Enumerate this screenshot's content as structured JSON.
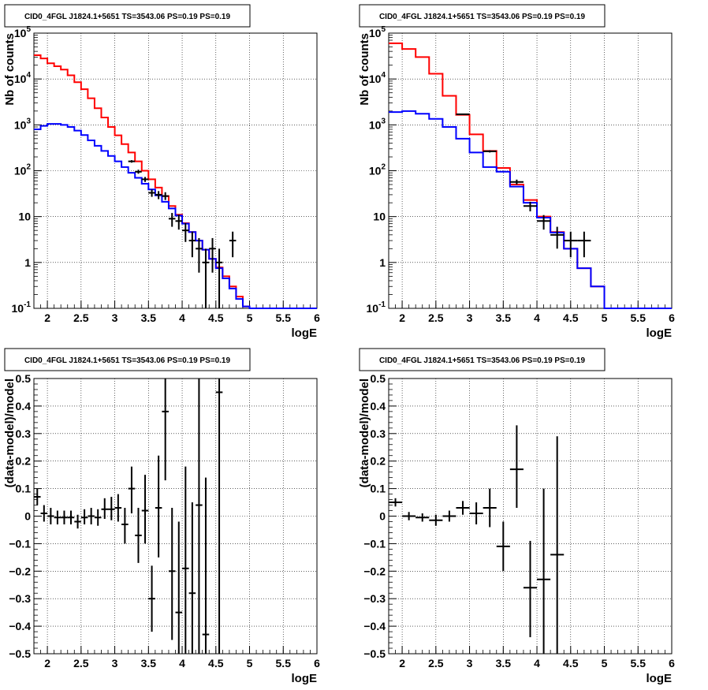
{
  "chart_data": [
    {
      "id": "tl",
      "type": "line",
      "title": "CID0_4FGL J1824.1+5651 TS=3543.06 PS=0.19 PS=0.19",
      "xlabel": "logE",
      "ylabel": "Nb of counts",
      "xlim": [
        1.8,
        6.0
      ],
      "ylim": [
        0.1,
        100000
      ],
      "ylog": true,
      "grid": true,
      "x_ticks": [
        "2",
        "2.5",
        "3",
        "3.5",
        "4",
        "4.5",
        "5",
        "5.5",
        "6"
      ],
      "y_ticks": [
        "10^-1",
        "1",
        "10",
        "10^2",
        "10^3",
        "10^4",
        "10^5"
      ],
      "series": [
        {
          "color": "#ff0000",
          "bin_edges": [
            1.8,
            1.9,
            2.0,
            2.1,
            2.2,
            2.3,
            2.4,
            2.5,
            2.6,
            2.7,
            2.8,
            2.9,
            3.0,
            3.1,
            3.2,
            3.3,
            3.4,
            3.5,
            3.6,
            3.7,
            3.8,
            3.9,
            4.0,
            4.1,
            4.2,
            4.3,
            4.4,
            4.5,
            4.6,
            4.7,
            4.8,
            4.9,
            5.0,
            6.0
          ],
          "values": [
            33000,
            28000,
            22000,
            19000,
            16000,
            12000,
            8500,
            6000,
            3800,
            2300,
            1450,
            900,
            590,
            380,
            250,
            160,
            100,
            65,
            43,
            28,
            17,
            11,
            7.2,
            4.6,
            3.0,
            1.9,
            1.2,
            0.78,
            0.5,
            0.3,
            0.18,
            0.11,
            0.1
          ]
        },
        {
          "color": "#0000ff",
          "bin_edges": [
            1.8,
            1.9,
            2.0,
            2.1,
            2.2,
            2.3,
            2.4,
            2.5,
            2.6,
            2.7,
            2.8,
            2.9,
            3.0,
            3.1,
            3.2,
            3.3,
            3.4,
            3.5,
            3.6,
            3.7,
            3.8,
            3.9,
            4.0,
            4.1,
            4.2,
            4.3,
            4.4,
            4.5,
            4.6,
            4.7,
            4.8,
            4.9,
            5.0,
            6.0
          ],
          "values": [
            800,
            950,
            1050,
            1050,
            1000,
            900,
            750,
            600,
            460,
            350,
            270,
            210,
            160,
            120,
            90,
            70,
            52,
            39,
            29,
            21,
            15,
            10.5,
            7,
            4.6,
            3.0,
            1.9,
            1.2,
            0.75,
            0.45,
            0.27,
            0.16,
            0.11,
            0.1
          ]
        }
      ],
      "points": [
        {
          "x": 3.25,
          "y": 160,
          "xerr": 0.05,
          "ylo": 150,
          "yhi": 170
        },
        {
          "x": 3.35,
          "y": 95,
          "xerr": 0.05,
          "ylo": 86,
          "yhi": 105
        },
        {
          "x": 3.45,
          "y": 65,
          "xerr": 0.05,
          "ylo": 57,
          "yhi": 73
        },
        {
          "x": 3.55,
          "y": 33,
          "xerr": 0.05,
          "ylo": 27,
          "yhi": 39
        },
        {
          "x": 3.65,
          "y": 30,
          "xerr": 0.05,
          "ylo": 24,
          "yhi": 36
        },
        {
          "x": 3.75,
          "y": 28,
          "xerr": 0.05,
          "ylo": 23,
          "yhi": 34
        },
        {
          "x": 3.85,
          "y": 9,
          "xerr": 0.05,
          "ylo": 6,
          "yhi": 12
        },
        {
          "x": 3.95,
          "y": 8,
          "xerr": 0.05,
          "ylo": 5.2,
          "yhi": 11
        },
        {
          "x": 4.05,
          "y": 5,
          "xerr": 0.05,
          "ylo": 2.8,
          "yhi": 7.2
        },
        {
          "x": 4.15,
          "y": 3,
          "xerr": 0.05,
          "ylo": 1.3,
          "yhi": 4.7
        },
        {
          "x": 4.25,
          "y": 2,
          "xerr": 0.05,
          "ylo": 0.6,
          "yhi": 3.4
        },
        {
          "x": 4.35,
          "y": 1,
          "xerr": 0.05,
          "ylo": 0.1,
          "yhi": 2.0
        },
        {
          "x": 4.45,
          "y": 2,
          "xerr": 0.05,
          "ylo": 0.6,
          "yhi": 3.4
        },
        {
          "x": 4.55,
          "y": 1,
          "xerr": 0.05,
          "ylo": 0.1,
          "yhi": 2.0
        },
        {
          "x": 4.75,
          "y": 3,
          "xerr": 0.05,
          "ylo": 1.3,
          "yhi": 4.7
        }
      ]
    },
    {
      "id": "tr",
      "type": "line",
      "title": "CID0_4FGL J1824.1+5651 TS=3543.06 PS=0.19 PS=0.19",
      "xlabel": "logE",
      "ylabel": "Nb of counts",
      "xlim": [
        1.8,
        6.0
      ],
      "ylim": [
        0.1,
        100000
      ],
      "ylog": true,
      "grid": true,
      "x_ticks": [
        "2",
        "2.5",
        "3",
        "3.5",
        "4",
        "4.5",
        "5",
        "5.5",
        "6"
      ],
      "y_ticks": [
        "10^-1",
        "1",
        "10",
        "10^2",
        "10^3",
        "10^4",
        "10^5"
      ],
      "series": [
        {
          "color": "#ff0000",
          "bin_edges": [
            1.8,
            2.0,
            2.2,
            2.4,
            2.6,
            2.8,
            3.0,
            3.2,
            3.4,
            3.6,
            3.8,
            4.0,
            4.2,
            4.4,
            4.6,
            4.8,
            5.0,
            6.0
          ],
          "values": [
            60000,
            45000,
            30000,
            13000,
            4300,
            1650,
            620,
            270,
            115,
            50,
            23,
            10,
            4.6,
            2.0,
            0.75,
            0.3,
            0.1
          ]
        },
        {
          "color": "#0000ff",
          "bin_edges": [
            1.8,
            2.0,
            2.2,
            2.4,
            2.6,
            2.8,
            3.0,
            3.2,
            3.4,
            3.6,
            3.8,
            4.0,
            4.2,
            4.4,
            4.6,
            4.8,
            5.0,
            6.0
          ],
          "values": [
            1900,
            2000,
            1750,
            1350,
            900,
            500,
            250,
            120,
            95,
            45,
            20,
            9.5,
            4.5,
            2.0,
            0.75,
            0.3,
            0.1
          ]
        }
      ],
      "points": [
        {
          "x": 2.9,
          "y": 1700,
          "xerr": 0.1,
          "ylo": 1660,
          "yhi": 1740
        },
        {
          "x": 3.3,
          "y": 265,
          "xerr": 0.1,
          "ylo": 250,
          "yhi": 280
        },
        {
          "x": 3.7,
          "y": 57,
          "xerr": 0.1,
          "ylo": 50,
          "yhi": 64
        },
        {
          "x": 3.9,
          "y": 17,
          "xerr": 0.1,
          "ylo": 13,
          "yhi": 21
        },
        {
          "x": 4.1,
          "y": 8,
          "xerr": 0.1,
          "ylo": 5.2,
          "yhi": 10.8
        },
        {
          "x": 4.3,
          "y": 4,
          "xerr": 0.1,
          "ylo": 2.0,
          "yhi": 6.0
        },
        {
          "x": 4.5,
          "y": 3,
          "xerr": 0.1,
          "ylo": 1.3,
          "yhi": 4.7
        },
        {
          "x": 4.7,
          "y": 3,
          "xerr": 0.1,
          "ylo": 1.3,
          "yhi": 4.7
        }
      ]
    },
    {
      "id": "bl",
      "type": "scatter",
      "title": "CID0_4FGL J1824.1+5651 TS=3543.06 PS=0.19 PS=0.19",
      "xlabel": "logE",
      "ylabel": "(data-model)/model",
      "xlim": [
        1.8,
        6.0
      ],
      "ylim": [
        -0.5,
        0.5
      ],
      "ylog": false,
      "grid": true,
      "x_ticks": [
        "2",
        "2.5",
        "3",
        "3.5",
        "4",
        "4.5",
        "5",
        "5.5",
        "6"
      ],
      "y_ticks": [
        "-0.5",
        "-0.4",
        "-0.3",
        "-0.2",
        "-0.1",
        "0",
        "0.1",
        "0.2",
        "0.3",
        "0.4",
        "0.5"
      ],
      "points": [
        {
          "x": 1.85,
          "y": 0.07,
          "xerr": 0.05,
          "ylo": 0.04,
          "yhi": 0.1
        },
        {
          "x": 1.95,
          "y": 0.01,
          "xerr": 0.05,
          "ylo": -0.02,
          "yhi": 0.04
        },
        {
          "x": 2.05,
          "y": 0.0,
          "xerr": 0.05,
          "ylo": -0.03,
          "yhi": 0.03
        },
        {
          "x": 2.15,
          "y": -0.005,
          "xerr": 0.05,
          "ylo": -0.03,
          "yhi": 0.02
        },
        {
          "x": 2.25,
          "y": -0.005,
          "xerr": 0.05,
          "ylo": -0.03,
          "yhi": 0.02
        },
        {
          "x": 2.35,
          "y": -0.005,
          "xerr": 0.05,
          "ylo": -0.03,
          "yhi": 0.02
        },
        {
          "x": 2.45,
          "y": -0.02,
          "xerr": 0.05,
          "ylo": -0.045,
          "yhi": 0.005
        },
        {
          "x": 2.55,
          "y": -0.005,
          "xerr": 0.05,
          "ylo": -0.03,
          "yhi": 0.025
        },
        {
          "x": 2.65,
          "y": 0.0,
          "xerr": 0.05,
          "ylo": -0.03,
          "yhi": 0.03
        },
        {
          "x": 2.75,
          "y": -0.005,
          "xerr": 0.05,
          "ylo": -0.035,
          "yhi": 0.025
        },
        {
          "x": 2.85,
          "y": 0.025,
          "xerr": 0.05,
          "ylo": -0.01,
          "yhi": 0.065
        },
        {
          "x": 2.95,
          "y": 0.025,
          "xerr": 0.05,
          "ylo": -0.015,
          "yhi": 0.07
        },
        {
          "x": 3.05,
          "y": 0.03,
          "xerr": 0.05,
          "ylo": -0.02,
          "yhi": 0.08
        },
        {
          "x": 3.15,
          "y": -0.03,
          "xerr": 0.05,
          "ylo": -0.1,
          "yhi": 0.03
        },
        {
          "x": 3.25,
          "y": 0.1,
          "xerr": 0.05,
          "ylo": 0.01,
          "yhi": 0.18
        },
        {
          "x": 3.35,
          "y": -0.07,
          "xerr": 0.05,
          "ylo": -0.17,
          "yhi": 0.03
        },
        {
          "x": 3.45,
          "y": 0.02,
          "xerr": 0.05,
          "ylo": -0.1,
          "yhi": 0.15
        },
        {
          "x": 3.55,
          "y": -0.3,
          "xerr": 0.05,
          "ylo": -0.42,
          "yhi": -0.18
        },
        {
          "x": 3.65,
          "y": 0.03,
          "xerr": 0.05,
          "ylo": -0.15,
          "yhi": 0.22
        },
        {
          "x": 3.75,
          "y": 0.38,
          "xerr": 0.05,
          "ylo": 0.13,
          "yhi": 0.52
        },
        {
          "x": 3.85,
          "y": -0.2,
          "xerr": 0.05,
          "ylo": -0.45,
          "yhi": 0.03
        },
        {
          "x": 3.95,
          "y": -0.35,
          "xerr": 0.05,
          "ylo": -0.52,
          "yhi": -0.02
        },
        {
          "x": 4.05,
          "y": -0.19,
          "xerr": 0.05,
          "ylo": -0.52,
          "yhi": 0.18
        },
        {
          "x": 4.15,
          "y": -0.28,
          "xerr": 0.05,
          "ylo": -0.52,
          "yhi": 0.05
        },
        {
          "x": 4.25,
          "y": 0.04,
          "xerr": 0.05,
          "ylo": -0.52,
          "yhi": 0.52
        },
        {
          "x": 4.35,
          "y": -0.43,
          "xerr": 0.05,
          "ylo": -0.52,
          "yhi": 0.14
        },
        {
          "x": 4.55,
          "y": 0.45,
          "xerr": 0.05,
          "ylo": -0.52,
          "yhi": 0.52
        }
      ]
    },
    {
      "id": "br",
      "type": "scatter",
      "title": "CID0_4FGL J1824.1+5651 TS=3543.06 PS=0.19 PS=0.19",
      "xlabel": "logE",
      "ylabel": "(data-model)/model",
      "xlim": [
        1.8,
        6.0
      ],
      "ylim": [
        -0.5,
        0.5
      ],
      "ylog": false,
      "grid": true,
      "x_ticks": [
        "2",
        "2.5",
        "3",
        "3.5",
        "4",
        "4.5",
        "5",
        "5.5",
        "6"
      ],
      "y_ticks": [
        "-0.5",
        "-0.4",
        "-0.3",
        "-0.2",
        "-0.1",
        "0",
        "0.1",
        "0.2",
        "0.3",
        "0.4",
        "0.5"
      ],
      "points": [
        {
          "x": 1.9,
          "y": 0.05,
          "xerr": 0.1,
          "ylo": 0.035,
          "yhi": 0.065
        },
        {
          "x": 2.1,
          "y": 0.0,
          "xerr": 0.1,
          "ylo": -0.015,
          "yhi": 0.015
        },
        {
          "x": 2.3,
          "y": -0.005,
          "xerr": 0.1,
          "ylo": -0.02,
          "yhi": 0.01
        },
        {
          "x": 2.5,
          "y": -0.015,
          "xerr": 0.1,
          "ylo": -0.035,
          "yhi": 0.005
        },
        {
          "x": 2.7,
          "y": 0.0,
          "xerr": 0.1,
          "ylo": -0.02,
          "yhi": 0.02
        },
        {
          "x": 2.9,
          "y": 0.03,
          "xerr": 0.1,
          "ylo": 0.005,
          "yhi": 0.055
        },
        {
          "x": 3.1,
          "y": 0.01,
          "xerr": 0.1,
          "ylo": -0.03,
          "yhi": 0.05
        },
        {
          "x": 3.3,
          "y": 0.03,
          "xerr": 0.1,
          "ylo": -0.04,
          "yhi": 0.1
        },
        {
          "x": 3.5,
          "y": -0.11,
          "xerr": 0.1,
          "ylo": -0.2,
          "yhi": -0.02
        },
        {
          "x": 3.7,
          "y": 0.17,
          "xerr": 0.1,
          "ylo": 0.03,
          "yhi": 0.33
        },
        {
          "x": 3.9,
          "y": -0.26,
          "xerr": 0.1,
          "ylo": -0.44,
          "yhi": -0.09
        },
        {
          "x": 4.1,
          "y": -0.23,
          "xerr": 0.1,
          "ylo": -0.52,
          "yhi": 0.1
        },
        {
          "x": 4.3,
          "y": -0.14,
          "xerr": 0.1,
          "ylo": -0.52,
          "yhi": 0.29
        }
      ]
    }
  ]
}
